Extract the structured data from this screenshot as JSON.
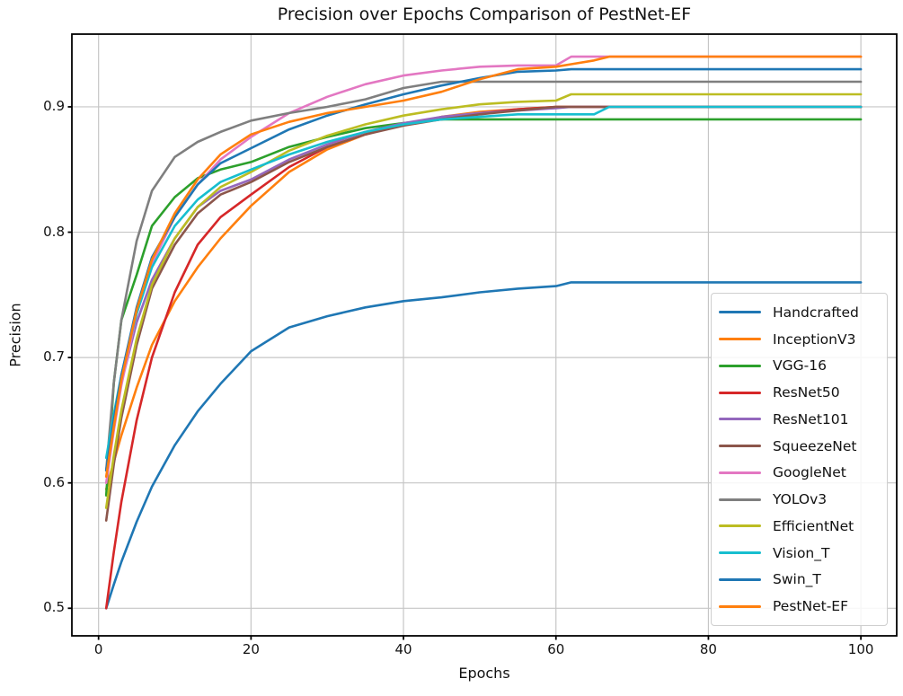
{
  "chart_data": {
    "type": "line",
    "title": "Precision over Epochs Comparison of PestNet-EF",
    "xlabel": "Epochs",
    "ylabel": "Precision",
    "xlim": [
      -3.5,
      104.7
    ],
    "ylim": [
      0.478,
      0.958
    ],
    "x_ticks": [
      0,
      20,
      40,
      60,
      80,
      100
    ],
    "y_ticks": [
      0.5,
      0.6,
      0.7,
      0.8,
      0.9
    ],
    "grid": true,
    "grid_color": "#c6c6c6",
    "legend_position": "lower-right-inside-axes",
    "x": [
      1,
      2,
      3,
      5,
      7,
      10,
      13,
      16,
      20,
      25,
      30,
      35,
      40,
      45,
      50,
      55,
      60,
      62,
      65,
      67,
      70,
      80,
      90,
      100
    ],
    "series": [
      {
        "name": "Handcrafted",
        "color": "#1f77b4",
        "final": 0.76,
        "values": [
          0.5,
          0.519,
          0.537,
          0.569,
          0.597,
          0.63,
          0.657,
          0.679,
          0.705,
          0.724,
          0.733,
          0.74,
          0.745,
          0.748,
          0.752,
          0.755,
          0.757,
          0.76,
          0.76,
          0.76,
          0.76,
          0.76,
          0.76,
          0.76
        ]
      },
      {
        "name": "InceptionV3",
        "color": "#ff7f0e",
        "final": 0.9,
        "values": [
          0.595,
          0.617,
          0.638,
          0.676,
          0.71,
          0.745,
          0.772,
          0.795,
          0.821,
          0.848,
          0.866,
          0.878,
          0.886,
          0.892,
          0.896,
          0.898,
          0.9,
          0.9,
          0.9,
          0.9,
          0.9,
          0.9,
          0.9,
          0.9
        ]
      },
      {
        "name": "VGG-16",
        "color": "#2ca02c",
        "final": 0.89,
        "values": [
          0.59,
          0.68,
          0.73,
          0.766,
          0.805,
          0.828,
          0.843,
          0.85,
          0.856,
          0.868,
          0.876,
          0.883,
          0.887,
          0.89,
          0.89,
          0.89,
          0.89,
          0.89,
          0.89,
          0.89,
          0.89,
          0.89,
          0.89,
          0.89
        ]
      },
      {
        "name": "ResNet50",
        "color": "#d62728",
        "final": 0.9,
        "values": [
          0.5,
          0.545,
          0.585,
          0.65,
          0.7,
          0.752,
          0.79,
          0.812,
          0.83,
          0.852,
          0.868,
          0.878,
          0.886,
          0.891,
          0.895,
          0.898,
          0.9,
          0.9,
          0.9,
          0.9,
          0.9,
          0.9,
          0.9,
          0.9
        ]
      },
      {
        "name": "ResNet101",
        "color": "#9467bd",
        "final": 0.9,
        "values": [
          0.61,
          0.648,
          0.68,
          0.728,
          0.762,
          0.795,
          0.82,
          0.833,
          0.842,
          0.858,
          0.87,
          0.88,
          0.887,
          0.892,
          0.895,
          0.897,
          0.899,
          0.9,
          0.9,
          0.9,
          0.9,
          0.9,
          0.9,
          0.9
        ]
      },
      {
        "name": "SqueezeNet",
        "color": "#8c564b",
        "final": 0.9,
        "values": [
          0.57,
          0.615,
          0.652,
          0.71,
          0.755,
          0.79,
          0.815,
          0.83,
          0.84,
          0.856,
          0.868,
          0.878,
          0.885,
          0.89,
          0.894,
          0.897,
          0.9,
          0.9,
          0.9,
          0.9,
          0.9,
          0.9,
          0.9,
          0.9
        ]
      },
      {
        "name": "GoogleNet",
        "color": "#e377c2",
        "final": 0.94,
        "values": [
          0.6,
          0.642,
          0.678,
          0.735,
          0.775,
          0.812,
          0.838,
          0.858,
          0.876,
          0.895,
          0.908,
          0.918,
          0.925,
          0.929,
          0.932,
          0.933,
          0.933,
          0.94,
          0.94,
          0.94,
          0.94,
          0.94,
          0.94,
          0.94
        ]
      },
      {
        "name": "YOLOv3",
        "color": "#7f7f7f",
        "final": 0.92,
        "values": [
          0.61,
          0.68,
          0.73,
          0.793,
          0.833,
          0.86,
          0.872,
          0.88,
          0.889,
          0.895,
          0.9,
          0.906,
          0.915,
          0.92,
          0.92,
          0.92,
          0.92,
          0.92,
          0.92,
          0.92,
          0.92,
          0.92,
          0.92,
          0.92
        ]
      },
      {
        "name": "EfficientNet",
        "color": "#bcbd22",
        "final": 0.91,
        "values": [
          0.58,
          0.622,
          0.658,
          0.715,
          0.758,
          0.795,
          0.82,
          0.836,
          0.848,
          0.865,
          0.877,
          0.886,
          0.893,
          0.898,
          0.902,
          0.904,
          0.905,
          0.91,
          0.91,
          0.91,
          0.91,
          0.91,
          0.91,
          0.91
        ]
      },
      {
        "name": "Vision_T",
        "color": "#17becf",
        "final": 0.9,
        "values": [
          0.62,
          0.655,
          0.686,
          0.735,
          0.772,
          0.805,
          0.826,
          0.84,
          0.85,
          0.862,
          0.872,
          0.88,
          0.886,
          0.89,
          0.892,
          0.894,
          0.894,
          0.894,
          0.894,
          0.9,
          0.9,
          0.9,
          0.9,
          0.9
        ]
      },
      {
        "name": "Swin_T",
        "color": "#1f77b4",
        "final": 0.93,
        "values": [
          0.61,
          0.65,
          0.686,
          0.74,
          0.78,
          0.812,
          0.838,
          0.855,
          0.867,
          0.882,
          0.893,
          0.902,
          0.91,
          0.917,
          0.923,
          0.928,
          0.929,
          0.93,
          0.93,
          0.93,
          0.93,
          0.93,
          0.93,
          0.93
        ]
      },
      {
        "name": "PestNet-EF",
        "color": "#ff7f0e",
        "final": 0.94,
        "values": [
          0.605,
          0.645,
          0.682,
          0.738,
          0.778,
          0.815,
          0.842,
          0.862,
          0.878,
          0.888,
          0.895,
          0.9,
          0.905,
          0.912,
          0.922,
          0.93,
          0.932,
          0.934,
          0.937,
          0.94,
          0.94,
          0.94,
          0.94,
          0.94
        ]
      }
    ]
  }
}
